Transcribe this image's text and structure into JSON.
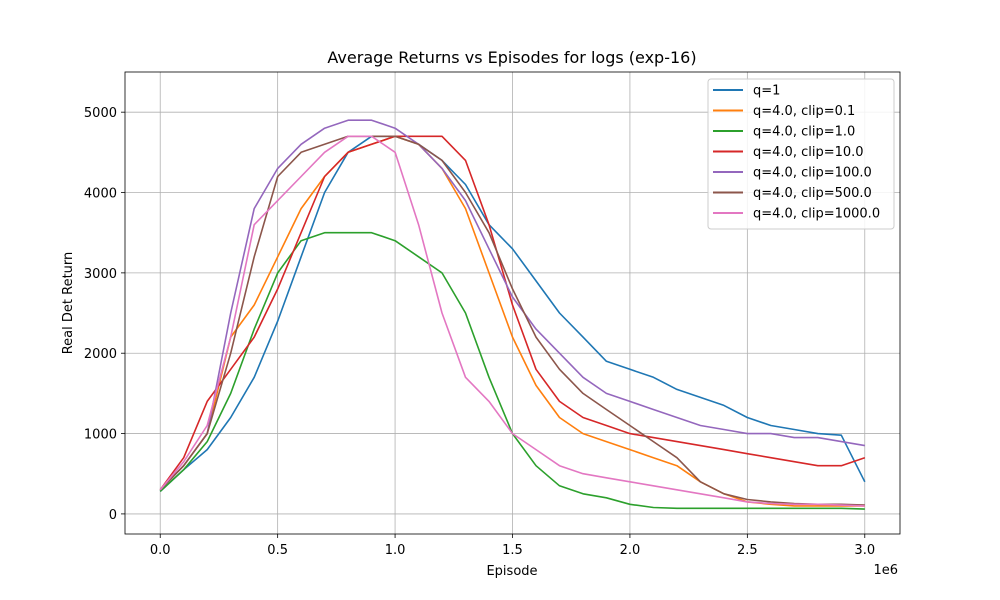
{
  "chart_data": {
    "type": "line",
    "title": "Average Returns vs Episodes for logs (exp-16)",
    "xlabel": "Episode",
    "ylabel": "Real Det Return",
    "x_offset_text": "1e6",
    "xlim": [
      -0.15,
      3.15
    ],
    "ylim": [
      -250,
      5500
    ],
    "x_ticks": [
      0.0,
      0.5,
      1.0,
      1.5,
      2.0,
      2.5,
      3.0
    ],
    "x_tick_labels": [
      "0.0",
      "0.5",
      "1.0",
      "1.5",
      "2.0",
      "2.5",
      "3.0"
    ],
    "y_ticks": [
      0,
      1000,
      2000,
      3000,
      4000,
      5000
    ],
    "y_tick_labels": [
      "0",
      "1000",
      "2000",
      "3000",
      "4000",
      "5000"
    ],
    "grid": true,
    "legend_position": "top-right",
    "series": [
      {
        "name": "q=1",
        "color": "#1f77b4",
        "x": [
          0,
          0.1,
          0.2,
          0.3,
          0.4,
          0.5,
          0.6,
          0.7,
          0.8,
          0.9,
          1.0,
          1.1,
          1.2,
          1.3,
          1.4,
          1.5,
          1.6,
          1.7,
          1.8,
          1.9,
          2.0,
          2.1,
          2.2,
          2.3,
          2.4,
          2.5,
          2.6,
          2.7,
          2.8,
          2.9,
          3.0
        ],
        "y": [
          280,
          550,
          800,
          1200,
          1700,
          2400,
          3200,
          4000,
          4500,
          4700,
          4700,
          4600,
          4400,
          4100,
          3600,
          3300,
          2900,
          2500,
          2200,
          1900,
          1800,
          1700,
          1550,
          1450,
          1350,
          1200,
          1100,
          1050,
          1000,
          980,
          400
        ]
      },
      {
        "name": "q=4.0, clip=0.1",
        "color": "#ff7f0e",
        "x": [
          0,
          0.1,
          0.2,
          0.3,
          0.4,
          0.5,
          0.6,
          0.7,
          0.8,
          0.9,
          1.0,
          1.1,
          1.2,
          1.3,
          1.4,
          1.5,
          1.6,
          1.7,
          1.8,
          1.9,
          2.0,
          2.1,
          2.2,
          2.3,
          2.4,
          2.5,
          2.6,
          2.7,
          2.8,
          2.9,
          3.0
        ],
        "y": [
          300,
          600,
          1000,
          2200,
          2600,
          3200,
          3800,
          4200,
          4500,
          4600,
          4700,
          4600,
          4300,
          3800,
          3000,
          2200,
          1600,
          1200,
          1000,
          900,
          800,
          700,
          600,
          400,
          250,
          150,
          120,
          100,
          100,
          100,
          100
        ]
      },
      {
        "name": "q=4.0, clip=1.0",
        "color": "#2ca02c",
        "x": [
          0,
          0.1,
          0.2,
          0.3,
          0.4,
          0.5,
          0.6,
          0.7,
          0.8,
          0.9,
          1.0,
          1.1,
          1.2,
          1.3,
          1.4,
          1.5,
          1.6,
          1.7,
          1.8,
          1.9,
          2.0,
          2.1,
          2.2,
          2.3,
          2.4,
          2.5,
          2.6,
          2.7,
          2.8,
          2.9,
          3.0
        ],
        "y": [
          280,
          550,
          900,
          1500,
          2300,
          3000,
          3400,
          3500,
          3500,
          3500,
          3400,
          3200,
          3000,
          2500,
          1700,
          1000,
          600,
          350,
          250,
          200,
          120,
          80,
          70,
          70,
          70,
          70,
          70,
          70,
          70,
          70,
          60
        ]
      },
      {
        "name": "q=4.0, clip=10.0",
        "color": "#d62728",
        "x": [
          0,
          0.1,
          0.2,
          0.3,
          0.4,
          0.5,
          0.6,
          0.7,
          0.8,
          0.9,
          1.0,
          1.1,
          1.2,
          1.3,
          1.4,
          1.5,
          1.6,
          1.7,
          1.8,
          1.9,
          2.0,
          2.1,
          2.2,
          2.3,
          2.4,
          2.5,
          2.6,
          2.7,
          2.8,
          2.9,
          3.0
        ],
        "y": [
          300,
          700,
          1400,
          1800,
          2200,
          2800,
          3500,
          4200,
          4500,
          4600,
          4700,
          4700,
          4700,
          4400,
          3600,
          2600,
          1800,
          1400,
          1200,
          1100,
          1000,
          950,
          900,
          850,
          800,
          750,
          700,
          650,
          600,
          600,
          700
        ]
      },
      {
        "name": "q=4.0, clip=100.0",
        "color": "#9467bd",
        "x": [
          0,
          0.1,
          0.2,
          0.3,
          0.4,
          0.5,
          0.6,
          0.7,
          0.8,
          0.9,
          1.0,
          1.1,
          1.2,
          1.3,
          1.4,
          1.5,
          1.6,
          1.7,
          1.8,
          1.9,
          2.0,
          2.1,
          2.2,
          2.3,
          2.4,
          2.5,
          2.6,
          2.7,
          2.8,
          2.9,
          3.0
        ],
        "y": [
          300,
          600,
          1000,
          2500,
          3800,
          4300,
          4600,
          4800,
          4900,
          4900,
          4800,
          4600,
          4300,
          3900,
          3300,
          2700,
          2300,
          2000,
          1700,
          1500,
          1400,
          1300,
          1200,
          1100,
          1050,
          1000,
          1000,
          950,
          950,
          900,
          850
        ]
      },
      {
        "name": "q=4.0, clip=500.0",
        "color": "#8c564b",
        "x": [
          0,
          0.1,
          0.2,
          0.3,
          0.4,
          0.5,
          0.6,
          0.7,
          0.8,
          0.9,
          1.0,
          1.1,
          1.2,
          1.3,
          1.4,
          1.5,
          1.6,
          1.7,
          1.8,
          1.9,
          2.0,
          2.1,
          2.2,
          2.3,
          2.4,
          2.5,
          2.6,
          2.7,
          2.8,
          2.9,
          3.0
        ],
        "y": [
          300,
          600,
          1000,
          2000,
          3200,
          4200,
          4500,
          4600,
          4700,
          4700,
          4700,
          4600,
          4400,
          4000,
          3500,
          2800,
          2200,
          1800,
          1500,
          1300,
          1100,
          900,
          700,
          400,
          250,
          180,
          150,
          130,
          120,
          120,
          110
        ]
      },
      {
        "name": "q=4.0, clip=1000.0",
        "color": "#e377c2",
        "x": [
          0,
          0.1,
          0.2,
          0.3,
          0.4,
          0.5,
          0.6,
          0.7,
          0.8,
          0.9,
          1.0,
          1.1,
          1.2,
          1.3,
          1.4,
          1.5,
          1.6,
          1.7,
          1.8,
          1.9,
          2.0,
          2.1,
          2.2,
          2.3,
          2.4,
          2.5,
          2.6,
          2.7,
          2.8,
          2.9,
          3.0
        ],
        "y": [
          300,
          650,
          1100,
          2200,
          3600,
          3900,
          4200,
          4500,
          4700,
          4700,
          4500,
          3600,
          2500,
          1700,
          1400,
          1000,
          800,
          600,
          500,
          450,
          400,
          350,
          300,
          250,
          200,
          150,
          130,
          120,
          120,
          110,
          100
        ]
      }
    ]
  }
}
